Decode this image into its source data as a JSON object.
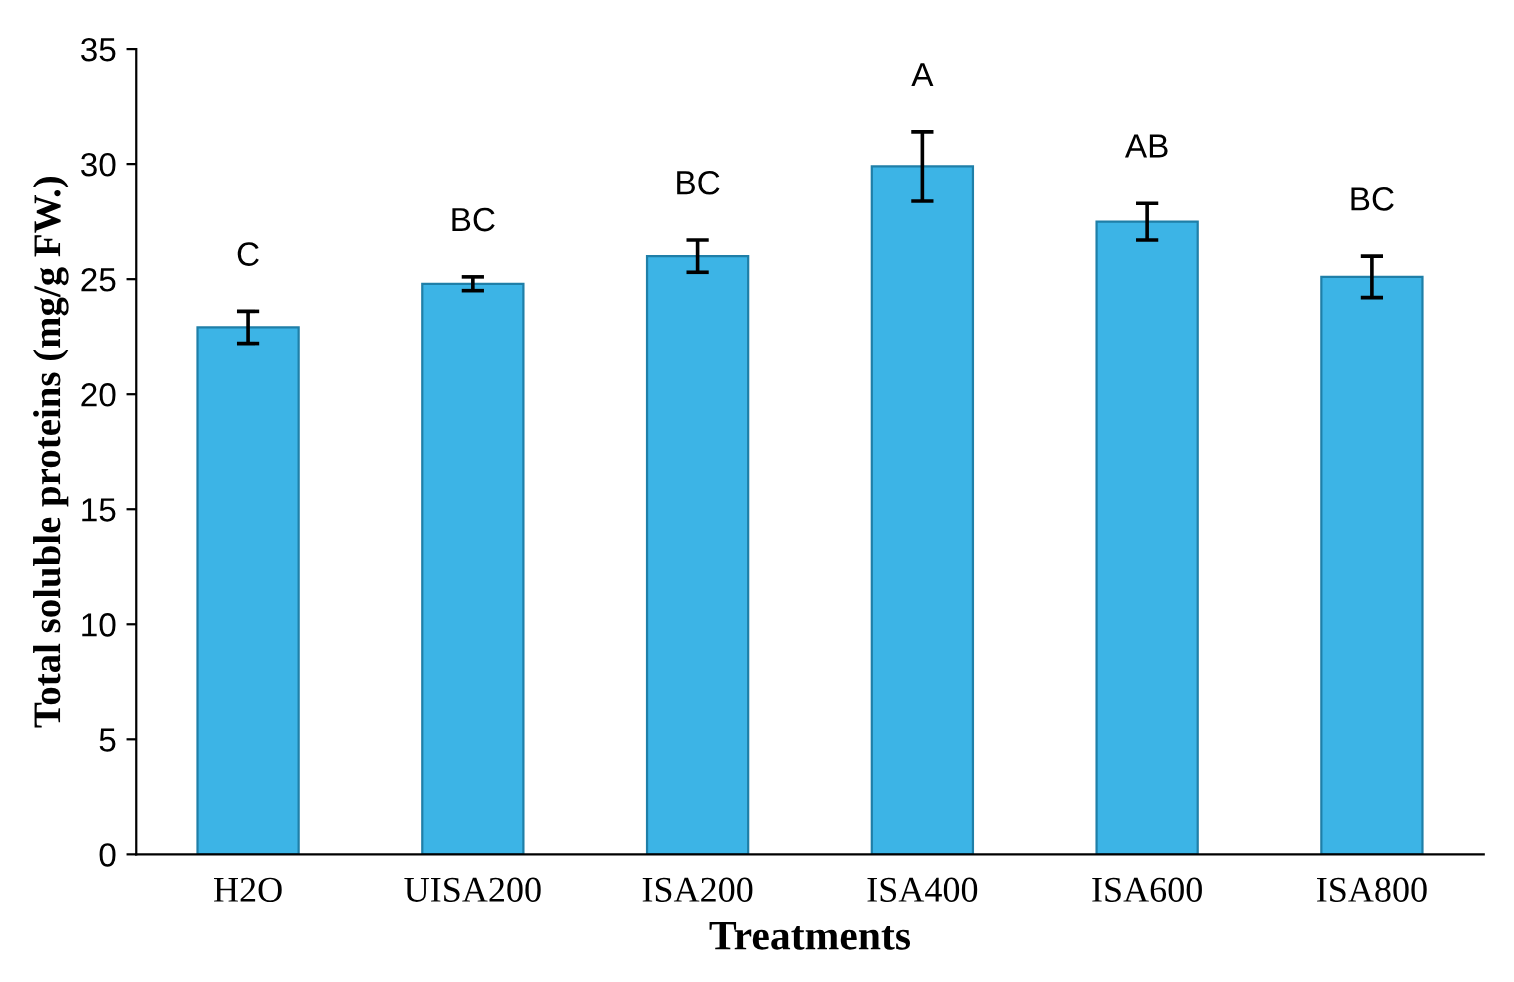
{
  "chart_data": {
    "type": "bar",
    "xlabel": "Treatments",
    "ylabel": "Total soluble proteins (mg/g FW.)",
    "categories": [
      "H2O",
      "UISA200",
      "ISA200",
      "ISA400",
      "ISA600",
      "ISA800"
    ],
    "values": [
      22.9,
      24.8,
      26.0,
      29.9,
      27.5,
      25.1
    ],
    "errors": [
      0.7,
      0.3,
      0.7,
      1.5,
      0.8,
      0.9
    ],
    "color": "#3cb4e6",
    "ylim": [
      0,
      35
    ],
    "yticks": [
      0,
      5,
      10,
      15,
      20,
      25,
      30,
      35
    ],
    "grid": false,
    "legend": false,
    "annotations": [
      "C",
      "BC",
      "BC",
      "A",
      "AB",
      "BC"
    ]
  }
}
